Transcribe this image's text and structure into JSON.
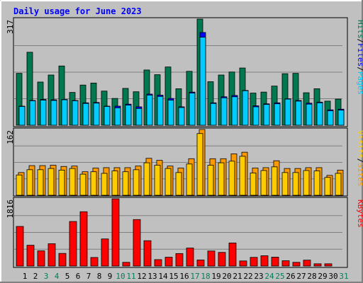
{
  "chart_data": [
    {
      "type": "bar",
      "title": "Daily usage for June 2023",
      "categories": [
        "1",
        "2",
        "3",
        "4",
        "5",
        "6",
        "7",
        "8",
        "9",
        "10",
        "11",
        "12",
        "13",
        "14",
        "15",
        "16",
        "17",
        "18",
        "19",
        "20",
        "21",
        "22",
        "23",
        "24",
        "25",
        "26",
        "27",
        "28",
        "29",
        "30",
        "31"
      ],
      "weekend_days": [
        "3",
        "4",
        "10",
        "11",
        "17",
        "18",
        "24",
        "25",
        "31"
      ],
      "ymax_label": "317",
      "ylabel": [
        "Pages",
        "/",
        "Files",
        "/",
        "Hits"
      ],
      "ylim": [
        0,
        317
      ],
      "series": [
        {
          "name": "Hits",
          "color": "#007850",
          "values": [
            155,
            218,
            129,
            150,
            177,
            98,
            120,
            126,
            102,
            80,
            110,
            100,
            165,
            151,
            174,
            109,
            161,
            317,
            130,
            150,
            159,
            171,
            96,
            99,
            117,
            154,
            155,
            97,
            109,
            72,
            78
          ]
        },
        {
          "name": "Files",
          "color": "#0000ff",
          "values": [
            57,
            74,
            77,
            76,
            77,
            74,
            67,
            68,
            57,
            57,
            63,
            55,
            93,
            90,
            80,
            55,
            99,
            277,
            67,
            85,
            89,
            104,
            58,
            64,
            67,
            79,
            74,
            66,
            69,
            46,
            48
          ]
        },
        {
          "name": "Pages",
          "color": "#00ccff",
          "values": [
            56,
            73,
            75,
            74,
            76,
            73,
            65,
            66,
            56,
            52,
            60,
            50,
            90,
            86,
            75,
            53,
            96,
            263,
            65,
            82,
            85,
            103,
            55,
            62,
            64,
            78,
            72,
            63,
            67,
            43,
            45
          ]
        }
      ]
    },
    {
      "type": "bar",
      "categories": [
        "1",
        "2",
        "3",
        "4",
        "5",
        "6",
        "7",
        "8",
        "9",
        "10",
        "11",
        "12",
        "13",
        "14",
        "15",
        "16",
        "17",
        "18",
        "19",
        "20",
        "21",
        "22",
        "23",
        "24",
        "25",
        "26",
        "27",
        "28",
        "29",
        "30",
        "31"
      ],
      "ymax_label": "162",
      "ylabel": [
        "Sites",
        "/",
        "Visits"
      ],
      "ylim": [
        0,
        162
      ],
      "series": [
        {
          "name": "Visits",
          "color": "#ff9900",
          "values": [
            56,
            73,
            73,
            74,
            71,
            72,
            58,
            67,
            68,
            68,
            68,
            72,
            91,
            86,
            72,
            67,
            90,
            162,
            90,
            90,
            102,
            106,
            67,
            68,
            85,
            66,
            66,
            68,
            68,
            49,
            62
          ]
        },
        {
          "name": "Sites",
          "color": "#ffff00",
          "values": [
            50,
            63,
            63,
            66,
            62,
            66,
            52,
            58,
            54,
            60,
            58,
            63,
            80,
            74,
            66,
            56,
            77,
            152,
            74,
            80,
            84,
            96,
            55,
            61,
            70,
            56,
            56,
            61,
            60,
            44,
            54
          ]
        }
      ]
    },
    {
      "type": "bar",
      "categories": [
        "1",
        "2",
        "3",
        "4",
        "5",
        "6",
        "7",
        "8",
        "9",
        "10",
        "11",
        "12",
        "13",
        "14",
        "15",
        "16",
        "17",
        "18",
        "19",
        "20",
        "21",
        "22",
        "23",
        "24",
        "25",
        "26",
        "27",
        "28",
        "29",
        "30",
        "31"
      ],
      "ymax_label": "1816",
      "ylabel": [
        "KBytes"
      ],
      "ylim": [
        0,
        1816
      ],
      "series": [
        {
          "name": "KBytes",
          "color": "#ff0000",
          "values": [
            1070,
            562,
            410,
            602,
            341,
            1203,
            1467,
            231,
            732,
            1816,
            100,
            1256,
            684,
            173,
            238,
            337,
            486,
            163,
            406,
            368,
            623,
            137,
            234,
            278,
            240,
            143,
            100,
            159,
            60,
            60,
            0
          ]
        }
      ]
    }
  ],
  "day_label_colors": {
    "weekday": "#000000",
    "weekend": "#00805c"
  },
  "background_colors": {
    "outer": "#c0c0c0",
    "plot": "#c0c0c0",
    "title": "#0000ff"
  }
}
